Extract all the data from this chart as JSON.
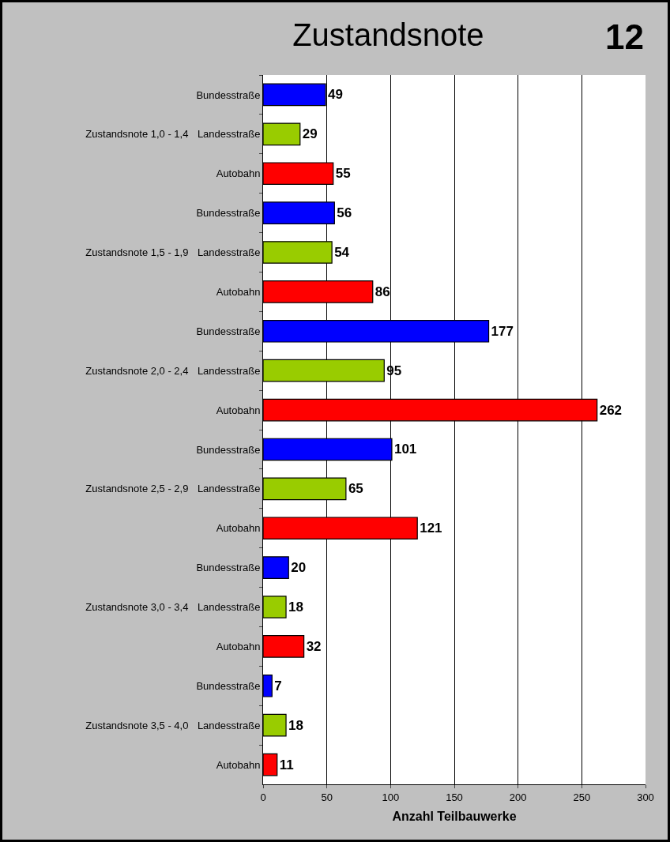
{
  "chart_data": {
    "type": "bar",
    "orientation": "horizontal",
    "title": "Zustandsnote",
    "xlabel": "Anzahl Teilbauwerke",
    "annotations": [
      "12"
    ],
    "categories": [
      "Zustandsnote 1,0 - 1,4",
      "Zustandsnote 1,5 - 1,9",
      "Zustandsnote 2,0 - 2,4",
      "Zustandsnote 2,5 - 2,9",
      "Zustandsnote 3,0 - 3,4",
      "Zustandsnote 3,5 - 4,0"
    ],
    "series": [
      {
        "name": "Bundesstraße",
        "color": "#0000ff",
        "values": [
          49,
          56,
          177,
          101,
          20,
          7
        ]
      },
      {
        "name": "Landesstraße",
        "color": "#99cc00",
        "values": [
          29,
          54,
          95,
          65,
          18,
          18
        ]
      },
      {
        "name": "Autobahn",
        "color": "#ff0000",
        "values": [
          55,
          86,
          262,
          121,
          32,
          11
        ]
      }
    ],
    "xlim": [
      0,
      300
    ],
    "xticks": [
      0,
      50,
      100,
      150,
      200,
      250,
      300
    ],
    "grid": "x",
    "legend": false,
    "data_labels": true
  }
}
